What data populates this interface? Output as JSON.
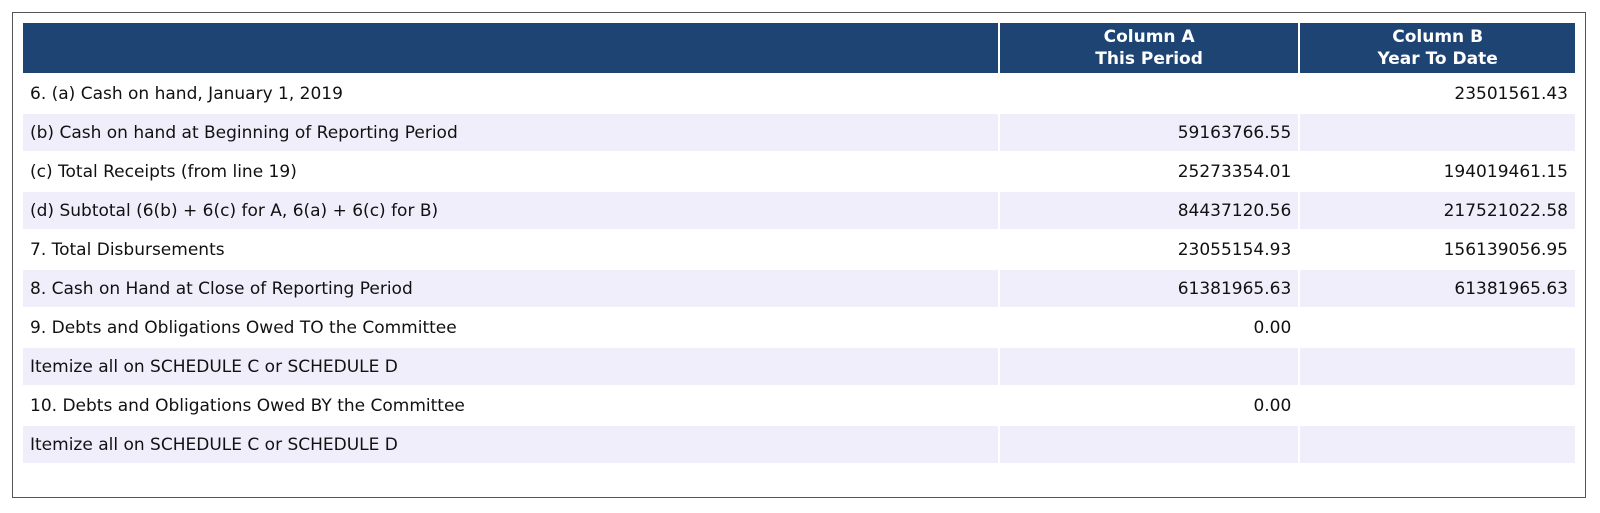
{
  "header": {
    "col_label": "",
    "col_a": [
      "Column A",
      "This Period"
    ],
    "col_b": [
      "Column B",
      "Year To Date"
    ]
  },
  "rows": [
    {
      "label": "6. (a) Cash on hand, January 1, 2019",
      "a": "",
      "b": "23501561.43"
    },
    {
      "label": "(b) Cash on hand at Beginning of Reporting Period",
      "a": "59163766.55",
      "b": ""
    },
    {
      "label": "(c) Total Receipts (from line 19)",
      "a": "25273354.01",
      "b": "194019461.15"
    },
    {
      "label": "(d) Subtotal (6(b) + 6(c) for A, 6(a) + 6(c) for B)",
      "a": "84437120.56",
      "b": "217521022.58"
    },
    {
      "label": "7. Total Disbursements",
      "a": "23055154.93",
      "b": "156139056.95"
    },
    {
      "label": "8. Cash on Hand at Close of Reporting Period",
      "a": "61381965.63",
      "b": "61381965.63"
    },
    {
      "label": "9. Debts and Obligations Owed TO the Committee",
      "a": "0.00",
      "b": ""
    },
    {
      "label": "Itemize all on SCHEDULE C or SCHEDULE D",
      "a": "",
      "b": ""
    },
    {
      "label": "10. Debts and Obligations Owed BY the Committee",
      "a": "0.00",
      "b": ""
    },
    {
      "label": "Itemize all on SCHEDULE C or SCHEDULE D",
      "a": "",
      "b": ""
    }
  ]
}
